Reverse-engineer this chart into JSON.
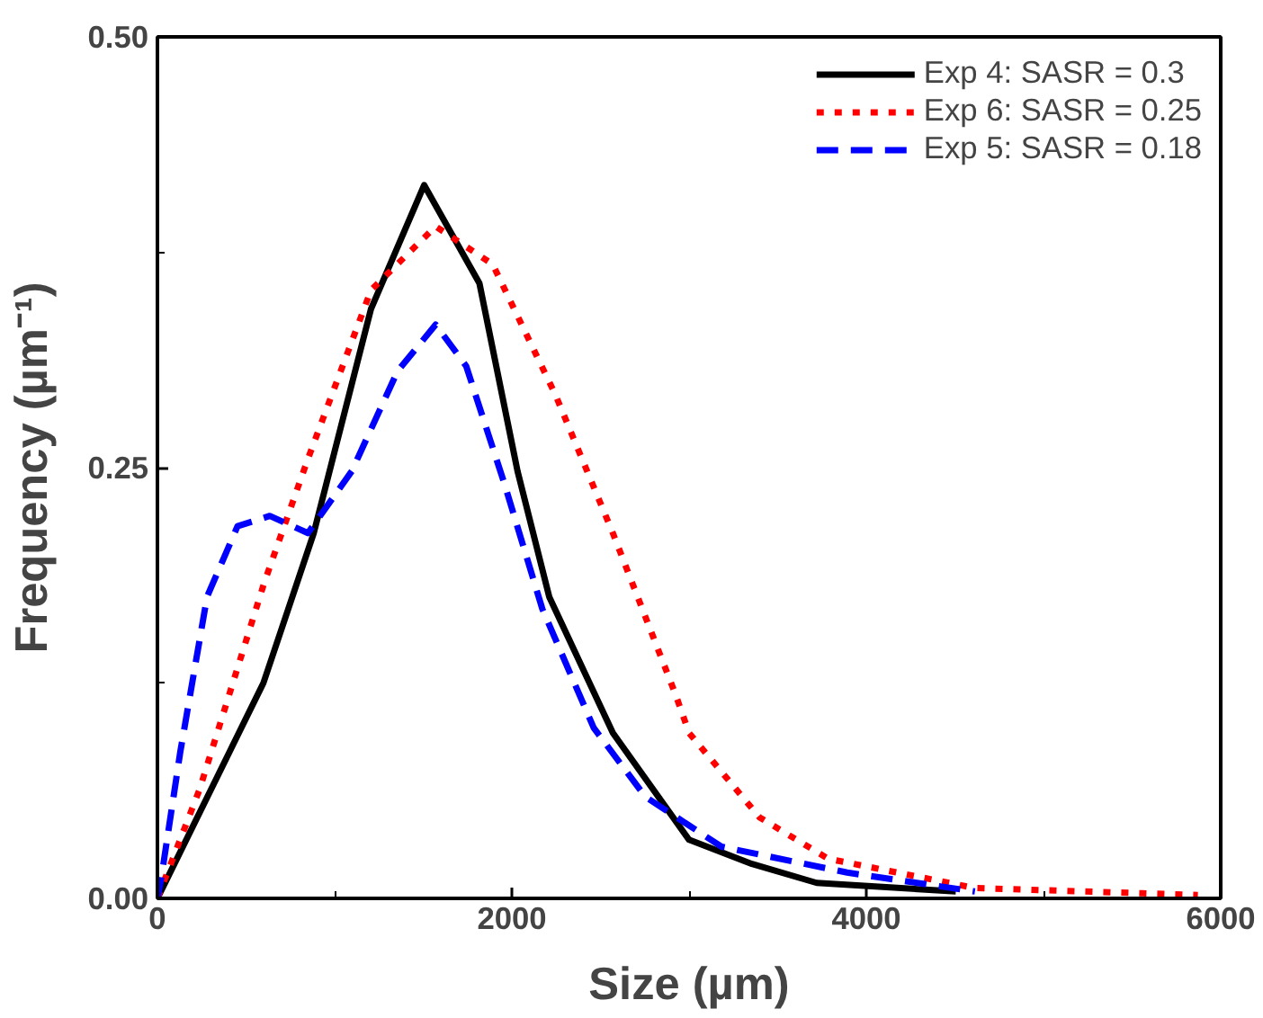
{
  "chart_data": {
    "type": "line",
    "xlabel": "Size (µm)",
    "ylabel": "Frequency (µm⁻¹)",
    "xlim": [
      0,
      6000
    ],
    "ylim": [
      0,
      0.5
    ],
    "xticks": [
      0,
      2000,
      4000,
      6000
    ],
    "yticks": [
      {
        "value": 0,
        "label": "0.00"
      },
      {
        "value": 0.25,
        "label": "0.25"
      },
      {
        "value": 0.5,
        "label": "0.50"
      }
    ],
    "grid": false,
    "legend": "top right",
    "series": [
      {
        "name": "Exp 4: SASR = 0.3",
        "color": "#000000",
        "line_style": "solid",
        "x": [
          0,
          598,
          882,
          1205,
          1505,
          1817,
          2032,
          2211,
          2570,
          3000,
          3355,
          3720,
          4505
        ],
        "values": [
          0,
          0.125,
          0.212,
          0.342,
          0.414,
          0.357,
          0.248,
          0.175,
          0.096,
          0.034,
          0.02,
          0.009,
          0.004
        ]
      },
      {
        "name": "Exp 6: SASR = 0.25",
        "color": "#ff0000",
        "line_style": "dotted",
        "x": [
          0,
          237,
          602,
          849,
          1205,
          1570,
          1892,
          2247,
          2570,
          2925,
          3000,
          3398,
          3785,
          4613,
          5871
        ],
        "values": [
          0,
          0.063,
          0.183,
          0.255,
          0.353,
          0.39,
          0.368,
          0.292,
          0.212,
          0.118,
          0.096,
          0.047,
          0.023,
          0.006,
          0.002
        ]
      },
      {
        "name": "Exp 5: SASR = 0.18",
        "color": "#0000ff",
        "line_style": "dashed",
        "x": [
          0,
          22,
          129,
          280,
          452,
          634,
          849,
          1097,
          1355,
          1570,
          1742,
          1957,
          2172,
          2462,
          2753,
          3183,
          3892,
          4613
        ],
        "values": [
          0,
          0.012,
          0.085,
          0.175,
          0.216,
          0.222,
          0.212,
          0.248,
          0.306,
          0.333,
          0.309,
          0.241,
          0.168,
          0.099,
          0.059,
          0.03,
          0.015,
          0.004
        ]
      }
    ]
  }
}
